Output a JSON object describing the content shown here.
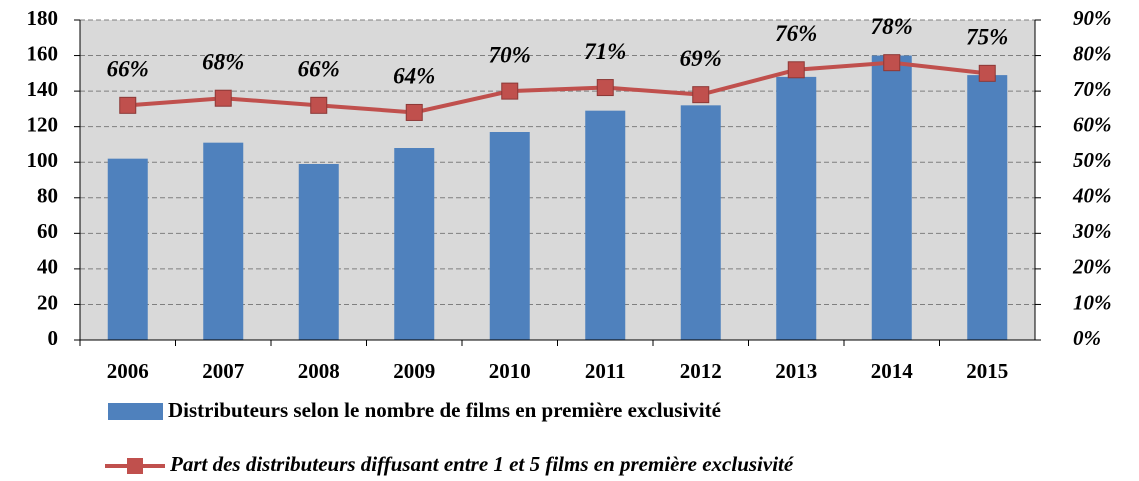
{
  "chart_data": {
    "type": "bar",
    "categories": [
      "2006",
      "2007",
      "2008",
      "2009",
      "2010",
      "2011",
      "2012",
      "2013",
      "2014",
      "2015"
    ],
    "series": [
      {
        "name": "Distributeurs selon le nombre de films en première exclusivité",
        "color": "#4f81bd",
        "values": [
          102,
          111,
          99,
          108,
          117,
          129,
          132,
          148,
          160,
          149
        ]
      },
      {
        "name": "Part des distributeurs diffusant entre 1 et 5 films en première exclusivité",
        "color": "#c0504d",
        "axis": "y2",
        "values": [
          66,
          68,
          66,
          64,
          70,
          71,
          69,
          76,
          78,
          75
        ],
        "value_labels": [
          "66%",
          "68%",
          "66%",
          "64%",
          "70%",
          "71%",
          "69%",
          "76%",
          "78%",
          "75%"
        ]
      }
    ],
    "ylim": [
      0,
      180
    ],
    "yticks": [
      0,
      20,
      40,
      60,
      80,
      100,
      120,
      140,
      160,
      180
    ],
    "y2lim": [
      0,
      90
    ],
    "y2ticks": [
      {
        "value": 0,
        "label": "0%"
      },
      {
        "value": 10,
        "label": "10%"
      },
      {
        "value": 20,
        "label": "20%"
      },
      {
        "value": 30,
        "label": "30%"
      },
      {
        "value": 40,
        "label": "40%"
      },
      {
        "value": 50,
        "label": "50%"
      },
      {
        "value": 60,
        "label": "60%"
      },
      {
        "value": 70,
        "label": "70%"
      },
      {
        "value": 80,
        "label": "80%"
      },
      {
        "value": 90,
        "label": "90%"
      }
    ],
    "grid": true,
    "legend": "bottom"
  }
}
